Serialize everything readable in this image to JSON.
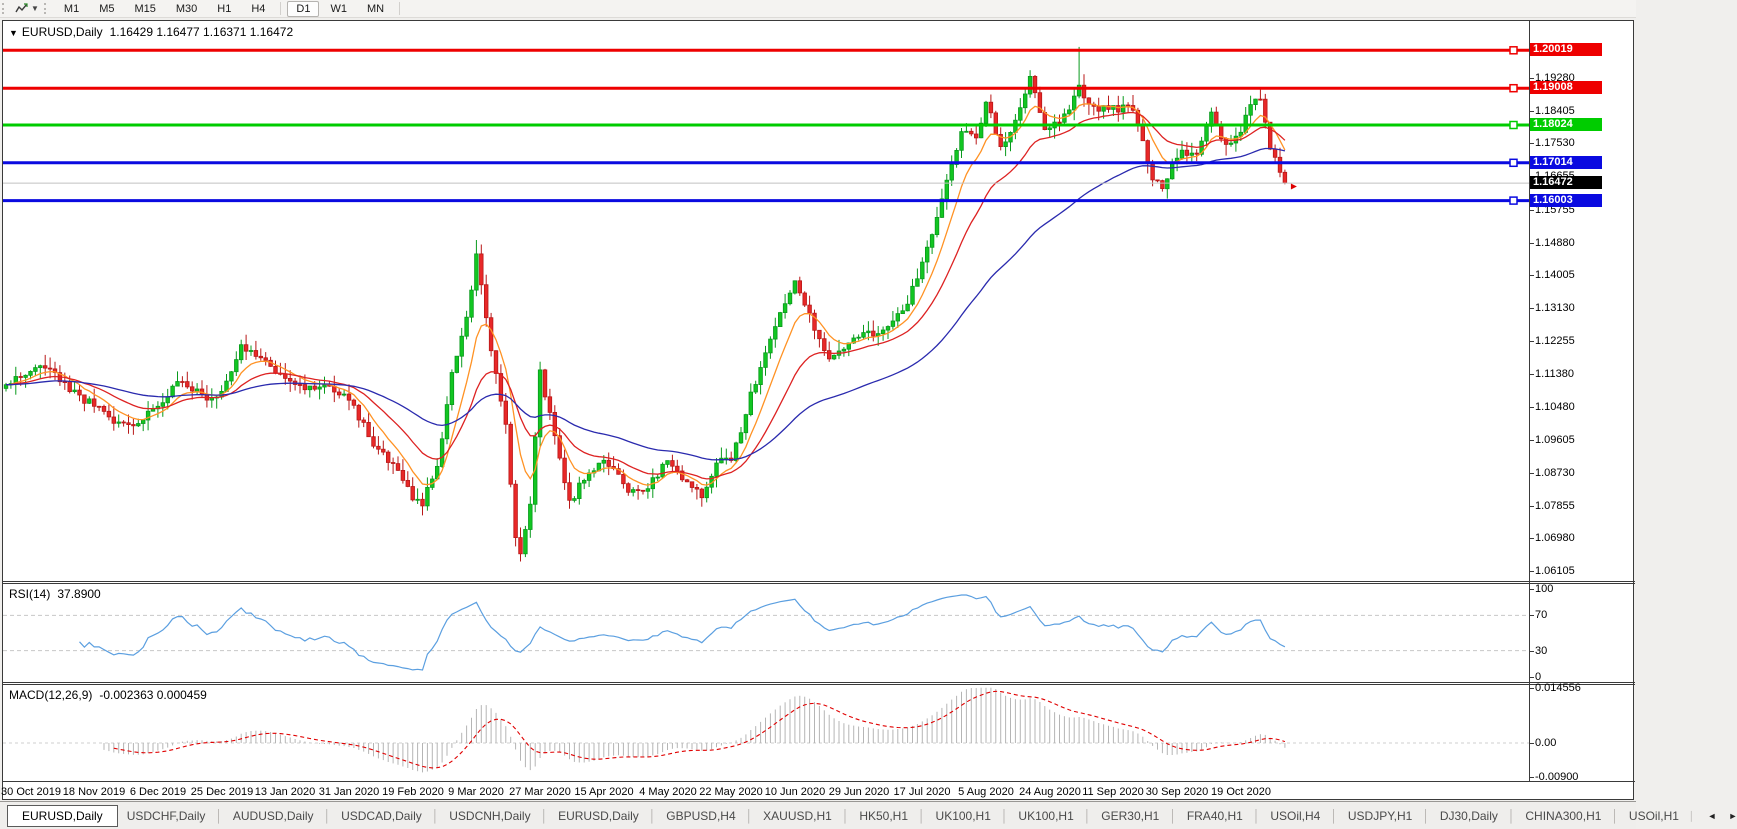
{
  "toolbar": {
    "tool_icon": "chart-line-icon",
    "timeframe_groups": [
      [
        "M1",
        "M5",
        "M15",
        "M30",
        "H1",
        "H4"
      ],
      [
        "D1",
        "W1",
        "MN"
      ]
    ],
    "active_timeframe": "D1"
  },
  "chart": {
    "dropdown_marker": "▼",
    "symbol": "EURUSD,Daily",
    "quotes": "1.16429 1.16477 1.16371 1.16472"
  },
  "price_axis": {
    "ticks": [
      "1.19280",
      "1.18405",
      "1.17530",
      "1.16655",
      "1.15755",
      "1.14880",
      "1.14005",
      "1.13130",
      "1.12255",
      "1.11380",
      "1.10480",
      "1.09605",
      "1.08730",
      "1.07855",
      "1.06980",
      "1.06105"
    ]
  },
  "rsi": {
    "name": "RSI(14)",
    "value": "37.8900",
    "ticks": [
      {
        "label": "100",
        "v": 100
      },
      {
        "label": "70",
        "v": 70
      },
      {
        "label": "30",
        "v": 30
      },
      {
        "label": "0",
        "v": 0
      }
    ],
    "levels": [
      70,
      30
    ],
    "line_color": "#5b9fe0",
    "level_color": "#c8c8c8"
  },
  "macd": {
    "name": "MACD(12,26,9)",
    "values": "-0.002363 0.000459",
    "ticks": [
      {
        "label": "0.014556",
        "v": 0.014556
      },
      {
        "label": "0.00",
        "v": 0
      },
      {
        "label": "-0.00900",
        "v": -0.009
      }
    ],
    "hist_color": "#b5b5b5",
    "signal_color": "#e00000",
    "zero_line_color": "#cfcfcf"
  },
  "dates": [
    "30 Oct 2019",
    "18 Nov 2019",
    "6 Dec 2019",
    "25 Dec 2019",
    "13 Jan 2020",
    "31 Jan 2020",
    "19 Feb 2020",
    "9 Mar 2020",
    "27 Mar 2020",
    "15 Apr 2020",
    "4 May 2020",
    "22 May 2020",
    "10 Jun 2020",
    "29 Jun 2020",
    "17 Jul 2020",
    "5 Aug 2020",
    "24 Aug 2020",
    "11 Sep 2020",
    "30 Sep 2020",
    "19 Oct 2020"
  ],
  "tabs": {
    "items": [
      "EURUSD,Daily",
      "USDCHF,Daily",
      "AUDUSD,Daily",
      "USDCAD,Daily",
      "USDCNH,Daily",
      "EURUSD,Daily",
      "GBPUSD,H4",
      "XAUUSD,H1",
      "HK50,H1",
      "UK100,H1",
      "UK100,H1",
      "GER30,H1",
      "FRA40,H1",
      "USOil,H4",
      "USDJPY,H1",
      "DJ30,Daily",
      "CHINA300,H1",
      "USOil,H1"
    ],
    "active_index": 0,
    "scroll_left": "◄",
    "scroll_right": "►"
  },
  "chart_data": {
    "type": "candlestick",
    "symbol": "EURUSD",
    "period": "Daily",
    "title": "EURUSD,Daily 1.16429 1.16477 1.16371 1.16472",
    "visible_price_range": [
      1.058,
      1.208
    ],
    "date_start": "30 Oct 2019",
    "date_end": "Oct 2020",
    "close_path": [
      [
        -5,
        1.1105
      ],
      [
        -2,
        1.1132
      ],
      [
        0,
        1.114
      ],
      [
        3,
        1.1162
      ],
      [
        6,
        1.112
      ],
      [
        10,
        1.1078
      ],
      [
        13,
        1.1052
      ],
      [
        17,
        1.101
      ],
      [
        21,
        1.0998
      ],
      [
        24,
        1.1032
      ],
      [
        26,
        1.1058
      ],
      [
        31,
        1.1122
      ],
      [
        36,
        1.1072
      ],
      [
        39,
        1.1092
      ],
      [
        43,
        1.1213
      ],
      [
        46,
        1.118
      ],
      [
        52,
        1.1134
      ],
      [
        57,
        1.1096
      ],
      [
        61,
        1.1108
      ],
      [
        65,
        1.1075
      ],
      [
        70,
        1.0948
      ],
      [
        74,
        1.089
      ],
      [
        78,
        1.0805
      ],
      [
        80,
        1.0792
      ],
      [
        83,
        1.0885
      ],
      [
        86,
        1.1135
      ],
      [
        89,
        1.1285
      ],
      [
        91,
        1.145
      ],
      [
        93,
        1.128
      ],
      [
        95,
        1.114
      ],
      [
        97,
        1.0995
      ],
      [
        99,
        1.07
      ],
      [
        100,
        1.0655
      ],
      [
        102,
        1.079
      ],
      [
        104,
        1.114
      ],
      [
        106,
        1.103
      ],
      [
        110,
        1.0792
      ],
      [
        113,
        1.086
      ],
      [
        117,
        1.0912
      ],
      [
        120,
        1.087
      ],
      [
        122,
        1.0822
      ],
      [
        126,
        1.0832
      ],
      [
        130,
        1.0905
      ],
      [
        134,
        1.0842
      ],
      [
        137,
        1.0816
      ],
      [
        141,
        1.0916
      ],
      [
        143,
        1.0902
      ],
      [
        147,
        1.1078
      ],
      [
        151,
        1.1235
      ],
      [
        156,
        1.1378
      ],
      [
        160,
        1.1262
      ],
      [
        163,
        1.1178
      ],
      [
        166,
        1.1208
      ],
      [
        169,
        1.1242
      ],
      [
        173,
        1.125
      ],
      [
        178,
        1.1302
      ],
      [
        182,
        1.1426
      ],
      [
        186,
        1.1598
      ],
      [
        190,
        1.1792
      ],
      [
        193,
        1.1764
      ],
      [
        195,
        1.1866
      ],
      [
        198,
        1.174
      ],
      [
        201,
        1.1814
      ],
      [
        204,
        1.1932
      ],
      [
        207,
        1.1798
      ],
      [
        208,
        1.1788
      ],
      [
        211,
        1.1824
      ],
      [
        214,
        1.1912
      ],
      [
        216,
        1.1852
      ],
      [
        221,
        1.1846
      ],
      [
        225,
        1.1848
      ],
      [
        229,
        1.1662
      ],
      [
        231,
        1.1632
      ],
      [
        234,
        1.1722
      ],
      [
        238,
        1.1732
      ],
      [
        241,
        1.1828
      ],
      [
        244,
        1.1748
      ],
      [
        247,
        1.1772
      ],
      [
        249,
        1.1864
      ],
      [
        251,
        1.1862
      ],
      [
        253,
        1.1746
      ],
      [
        255,
        1.1672
      ],
      [
        256,
        1.16472
      ]
    ],
    "wick_overrides": [
      {
        "d": 91,
        "high": 1.1495
      },
      {
        "d": 100,
        "low": 1.0636
      },
      {
        "d": 214,
        "high": 1.2011
      }
    ],
    "candle_up_color": "#12c622",
    "candle_up_stroke": "#089a1c",
    "candle_down_color": "#e82828",
    "candle_down_stroke": "#b81818",
    "moving_averages": [
      {
        "period": 8,
        "color": "#ff9224"
      },
      {
        "period": 20,
        "color": "#dd2222"
      },
      {
        "period": 55,
        "color": "#2a2aae"
      }
    ],
    "horizontal_lines": [
      {
        "price": 1.20019,
        "label": "1.20019",
        "color": "#ee0000"
      },
      {
        "price": 1.19008,
        "label": "1.19008",
        "color": "#ee0000"
      },
      {
        "price": 1.18024,
        "label": "1.18024",
        "color": "#00cc00"
      },
      {
        "price": 1.17014,
        "label": "1.17014",
        "color": "#0a0ae0"
      },
      {
        "price": 1.16003,
        "label": "1.16003",
        "color": "#0a0ae0"
      }
    ],
    "current_price": {
      "price": 1.16472,
      "label": "1.16472",
      "line_color": "#c0c0c0",
      "badge_color": "#000000"
    },
    "marker": {
      "price": 1.1638,
      "color": "#dd0000"
    }
  }
}
